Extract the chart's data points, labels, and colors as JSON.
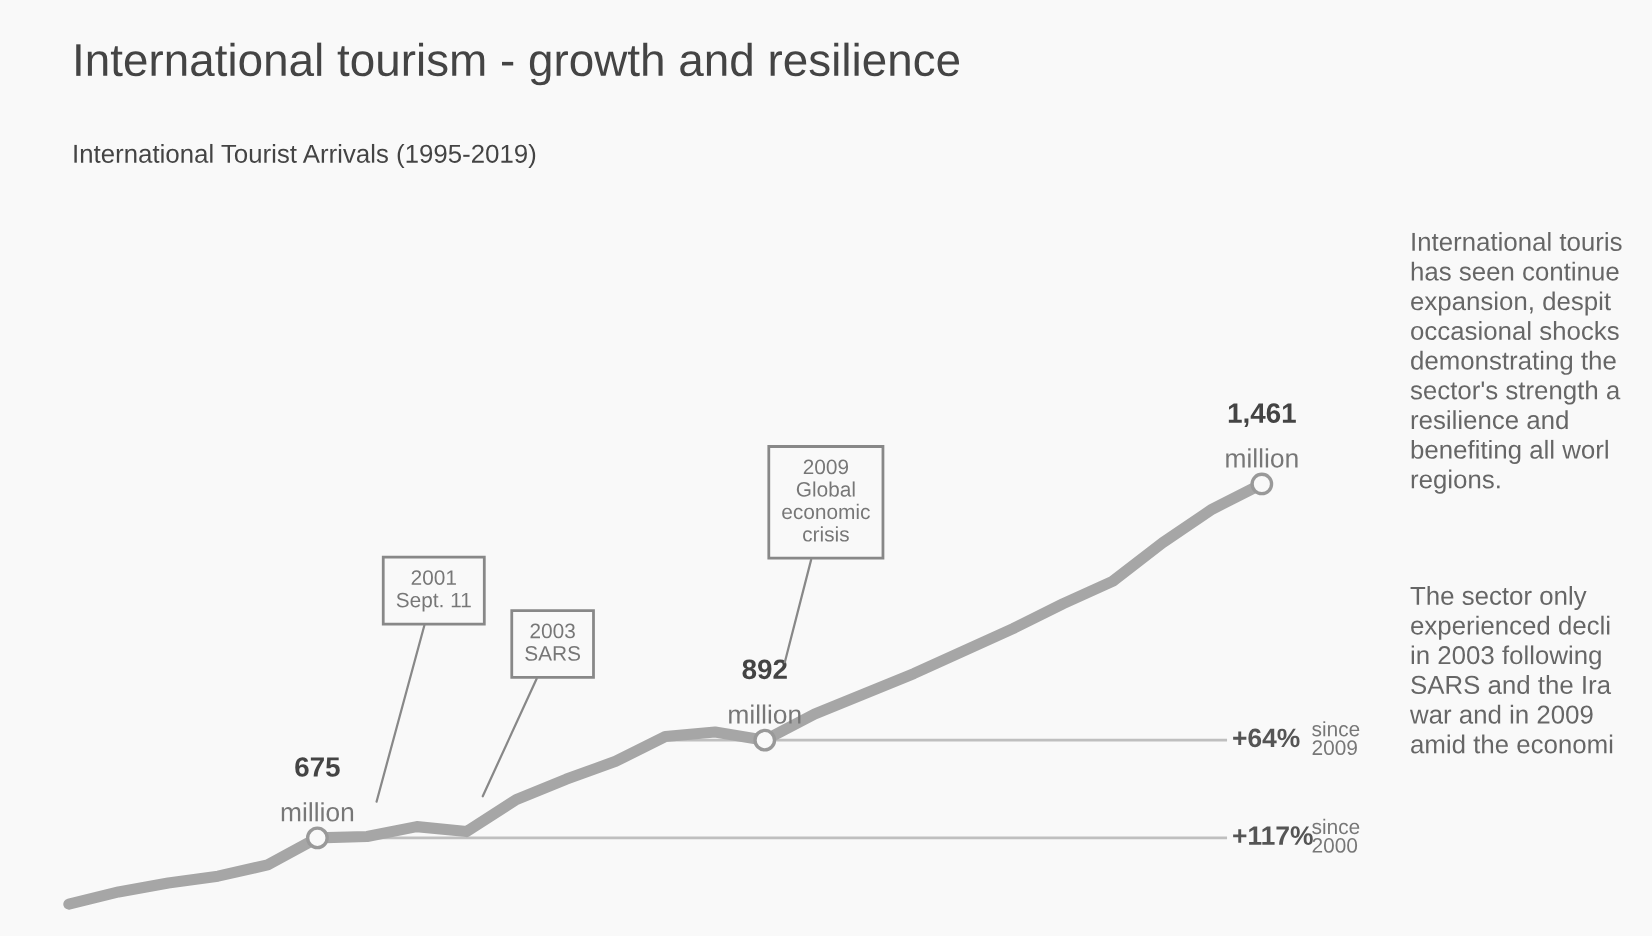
{
  "chart_data": {
    "type": "line",
    "title": "International tourism - growth and resilience",
    "subtitle": "International Tourist Arrivals (1995-2019)",
    "categories": [
      null,
      null,
      null,
      null,
      null,
      null,
      null,
      null,
      null,
      null,
      null,
      null,
      null,
      null,
      null,
      null,
      null,
      null,
      null,
      null,
      null,
      null,
      null,
      null,
      null
    ],
    "series": [
      {
        "color": "#a6a6a6",
        "values": [
          528,
          555,
          575,
          590,
          615,
          675,
          678,
          700,
          689,
          760,
          805,
          845,
          900,
          910,
          892,
          950,
          995,
          1040,
          1090,
          1140,
          1195,
          1245,
          1330,
          1405,
          1461
        ],
        "value_labels": [
          null,
          null,
          null,
          null,
          null,
          "675 million",
          null,
          null,
          null,
          null,
          null,
          null,
          null,
          null,
          "892 million",
          null,
          null,
          null,
          null,
          null,
          null,
          null,
          null,
          null,
          "1,461 million"
        ]
      }
    ],
    "line_style": "solid",
    "ref_lines": [
      {
        "axis": "y",
        "value": 892,
        "label": "+64% since 2009",
        "color": "#bfbfbf"
      },
      {
        "axis": "y",
        "value": 675,
        "label": "+117% since 2000",
        "color": "#bfbfbf"
      }
    ],
    "annotations": [
      "2001\nSept. 11",
      "2003\nSARS",
      "2009\nGlobal\neconomic\ncrisis",
      "International touris\nhas seen continue\nexpansion, despit\noccasional shocks\ndemonstrating the\nsector's strength a\nresilience and\nbenefiting all worl\nregions.",
      "The sector only\nexperienced decli\nin 2003 following\nSARS and the Ira\nwar and in 2009\namid the economi"
    ]
  }
}
